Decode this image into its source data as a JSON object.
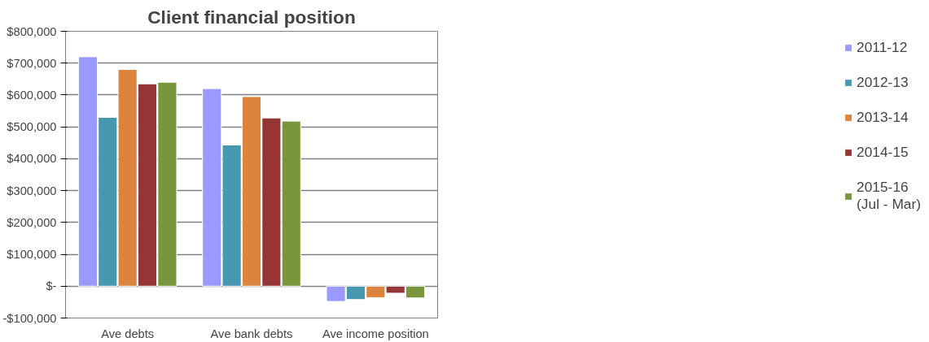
{
  "chart_data": {
    "type": "bar",
    "title": "Client financial position",
    "categories": [
      "Ave debts",
      "Ave bank debts",
      "Ave income position"
    ],
    "series": [
      {
        "name": "2011-12",
        "color": "#9999ff",
        "values": [
          720000,
          620000,
          -48000
        ]
      },
      {
        "name": "2012-13",
        "color": "#4598b0",
        "values": [
          530000,
          443000,
          -42000
        ]
      },
      {
        "name": "2013-14",
        "color": "#dc843e",
        "values": [
          680000,
          595000,
          -36000
        ]
      },
      {
        "name": "2014-15",
        "color": "#953536",
        "values": [
          635000,
          528000,
          -22000
        ]
      },
      {
        "name": "2015-16\n(Jul - Mar)",
        "color": "#7a963d",
        "values": [
          640000,
          518000,
          -37000
        ]
      }
    ],
    "ylim": [
      -100000,
      800000
    ],
    "yticks": [
      {
        "value": -100000,
        "label": "-$100,000"
      },
      {
        "value": 0,
        "label": "$-"
      },
      {
        "value": 100000,
        "label": "$100,000"
      },
      {
        "value": 200000,
        "label": "$200,000"
      },
      {
        "value": 300000,
        "label": "$300,000"
      },
      {
        "value": 400000,
        "label": "$400,000"
      },
      {
        "value": 500000,
        "label": "$500,000"
      },
      {
        "value": 600000,
        "label": "$600,000"
      },
      {
        "value": 700000,
        "label": "$700,000"
      },
      {
        "value": 800000,
        "label": "$800,000"
      }
    ],
    "grid": "y",
    "legend": "right"
  }
}
